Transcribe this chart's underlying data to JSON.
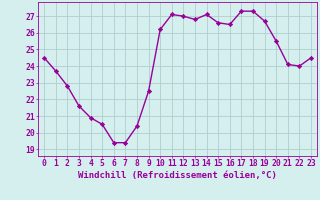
{
  "x": [
    0,
    1,
    2,
    3,
    4,
    5,
    6,
    7,
    8,
    9,
    10,
    11,
    12,
    13,
    14,
    15,
    16,
    17,
    18,
    19,
    20,
    21,
    22,
    23
  ],
  "y": [
    24.5,
    23.7,
    22.8,
    21.6,
    20.9,
    20.5,
    19.4,
    19.4,
    20.4,
    22.5,
    26.2,
    27.1,
    27.0,
    26.8,
    27.1,
    26.6,
    26.5,
    27.3,
    27.3,
    26.7,
    25.5,
    24.1,
    24.0,
    24.5
  ],
  "line_color": "#990099",
  "marker": "D",
  "marker_size": 2.2,
  "bg_color": "#d5efef",
  "grid_color": "#b0cece",
  "title": "Windchill (Refroidissement éolien,°C)",
  "ylabel_vals": [
    19,
    20,
    21,
    22,
    23,
    24,
    25,
    26,
    27
  ],
  "xlabel_vals": [
    0,
    1,
    2,
    3,
    4,
    5,
    6,
    7,
    8,
    9,
    10,
    11,
    12,
    13,
    14,
    15,
    16,
    17,
    18,
    19,
    20,
    21,
    22,
    23
  ],
  "ylim": [
    18.6,
    27.85
  ],
  "xlim": [
    -0.5,
    23.5
  ],
  "tick_color": "#990099",
  "tick_labelsize": 5.8,
  "xlabel_fontsize": 6.5,
  "linewidth": 1.0
}
